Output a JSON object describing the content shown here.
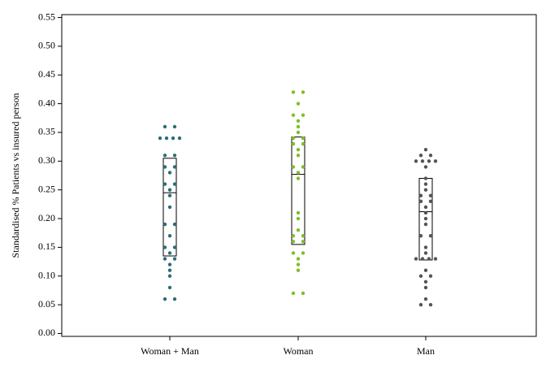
{
  "chart_data": {
    "type": "strip",
    "y_label": "Standardised % Patients vs insured person",
    "categories": [
      "Woman + Man",
      "Woman",
      "Man"
    ],
    "ylim": [
      -0.005,
      0.555
    ],
    "yticks": [
      {
        "value": 0,
        "label": "0.00"
      },
      0.05,
      {
        "value": 0.1,
        "label": "0.10"
      },
      0.15,
      {
        "value": 0.2,
        "label": "0.20"
      },
      0.25,
      {
        "value": 0.3,
        "label": "0.30"
      },
      0.35,
      {
        "value": 0.4,
        "label": "0.40"
      },
      0.45,
      {
        "value": 0.5,
        "label": "0.50"
      },
      0.55
    ],
    "groups": [
      {
        "color": "#2b6e76",
        "q1": 0.135,
        "median": 0.245,
        "q3": 0.305,
        "values": [
          0.36,
          0.36,
          0.34,
          0.34,
          0.34,
          0.34,
          0.31,
          0.31,
          0.29,
          0.29,
          0.28,
          0.26,
          0.26,
          0.25,
          0.24,
          0.22,
          0.19,
          0.19,
          0.17,
          0.15,
          0.15,
          0.14,
          0.13,
          0.13,
          0.12,
          0.11,
          0.1,
          0.08,
          0.06,
          0.06
        ]
      },
      {
        "color": "#7fbe2a",
        "q1": 0.155,
        "median": 0.277,
        "q3": 0.342,
        "values": [
          0.42,
          0.42,
          0.4,
          0.38,
          0.38,
          0.37,
          0.36,
          0.35,
          0.34,
          0.34,
          0.33,
          0.33,
          0.32,
          0.31,
          0.29,
          0.29,
          0.28,
          0.27,
          0.21,
          0.2,
          0.18,
          0.17,
          0.17,
          0.16,
          0.16,
          0.14,
          0.14,
          0.13,
          0.12,
          0.11,
          0.07,
          0.07
        ]
      },
      {
        "color": "#555555",
        "q1": 0.128,
        "median": 0.212,
        "q3": 0.27,
        "values": [
          0.32,
          0.31,
          0.31,
          0.3,
          0.3,
          0.3,
          0.3,
          0.29,
          0.27,
          0.26,
          0.25,
          0.24,
          0.24,
          0.23,
          0.23,
          0.22,
          0.21,
          0.2,
          0.19,
          0.17,
          0.17,
          0.15,
          0.14,
          0.13,
          0.13,
          0.13,
          0.13,
          0.11,
          0.1,
          0.1,
          0.09,
          0.08,
          0.06,
          0.05,
          0.05
        ]
      }
    ]
  }
}
